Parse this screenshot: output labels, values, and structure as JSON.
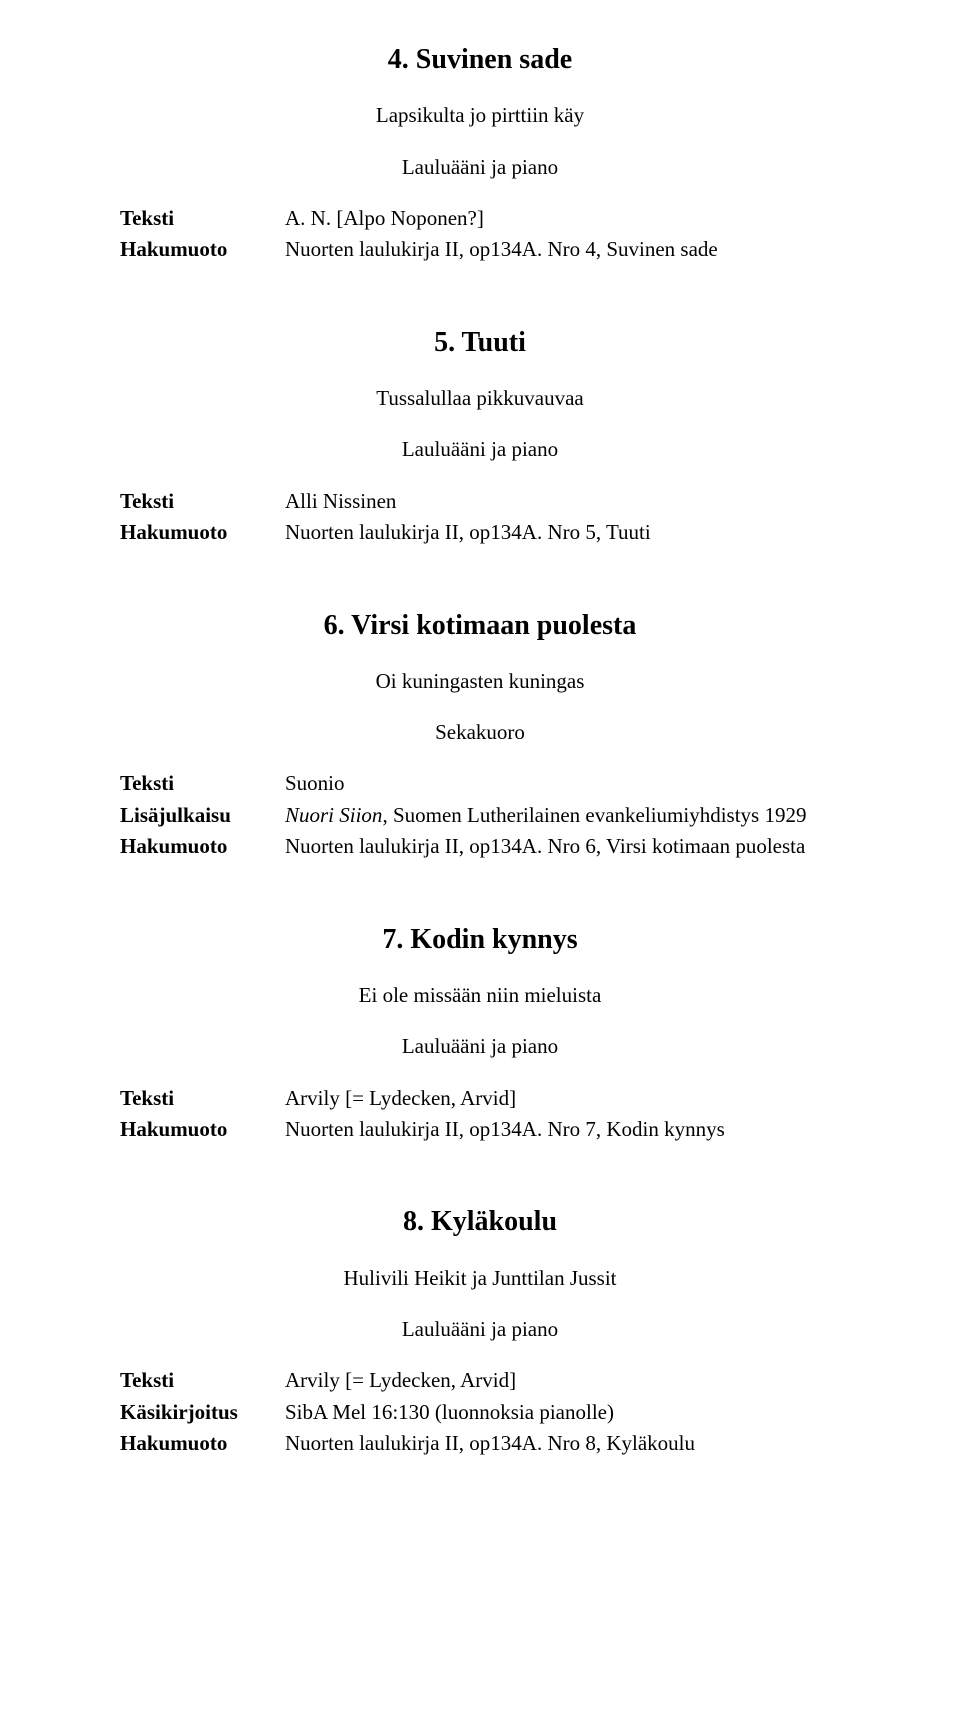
{
  "labels": {
    "teksti": "Teksti",
    "hakumuoto": "Hakumuoto",
    "lisajulkaisu": "Lisäjulkaisu",
    "kasikirjoitus": "Käsikirjoitus"
  },
  "entries": [
    {
      "title": "4. Suvinen sade",
      "incipit": "Lapsikulta jo pirttiin käy",
      "scoring": "Lauluääni ja piano",
      "meta": [
        {
          "label": "teksti",
          "value": "A. N. [Alpo Noponen?]"
        },
        {
          "label": "hakumuoto",
          "value": "Nuorten laulukirja II, op134A. Nro 4, Suvinen sade"
        }
      ]
    },
    {
      "title": "5. Tuuti",
      "incipit": "Tussalullaa pikkuvauvaa",
      "scoring": "Lauluääni ja piano",
      "meta": [
        {
          "label": "teksti",
          "value": "Alli Nissinen"
        },
        {
          "label": "hakumuoto",
          "value": "Nuorten laulukirja II, op134A. Nro 5, Tuuti"
        }
      ]
    },
    {
      "title": "6. Virsi kotimaan puolesta",
      "incipit": "Oi kuningasten kuningas",
      "scoring": "Sekakuoro",
      "meta": [
        {
          "label": "teksti",
          "value": "Suonio"
        },
        {
          "label": "lisajulkaisu",
          "value_italic": "Nuori Siion",
          "value_rest": ", Suomen Lutherilainen evankeliumiyhdistys 1929"
        },
        {
          "label": "hakumuoto",
          "value": "Nuorten laulukirja II, op134A. Nro 6, Virsi kotimaan puolesta"
        }
      ]
    },
    {
      "title": "7. Kodin kynnys",
      "incipit": "Ei ole missään niin mieluista",
      "scoring": "Lauluääni ja piano",
      "meta": [
        {
          "label": "teksti",
          "value": "Arvily [= Lydecken, Arvid]"
        },
        {
          "label": "hakumuoto",
          "value": "Nuorten laulukirja II, op134A. Nro 7, Kodin kynnys"
        }
      ]
    },
    {
      "title": "8. Kyläkoulu",
      "incipit": "Hulivili Heikit ja Junttilan Jussit",
      "scoring": "Lauluääni ja piano",
      "meta": [
        {
          "label": "teksti",
          "value": "Arvily [= Lydecken, Arvid]"
        },
        {
          "label": "kasikirjoitus",
          "value": "SibA Mel 16:130 (luonnoksia pianolle)"
        },
        {
          "label": "hakumuoto",
          "value": "Nuorten laulukirja II, op134A. Nro 8, Kyläkoulu"
        }
      ]
    }
  ]
}
